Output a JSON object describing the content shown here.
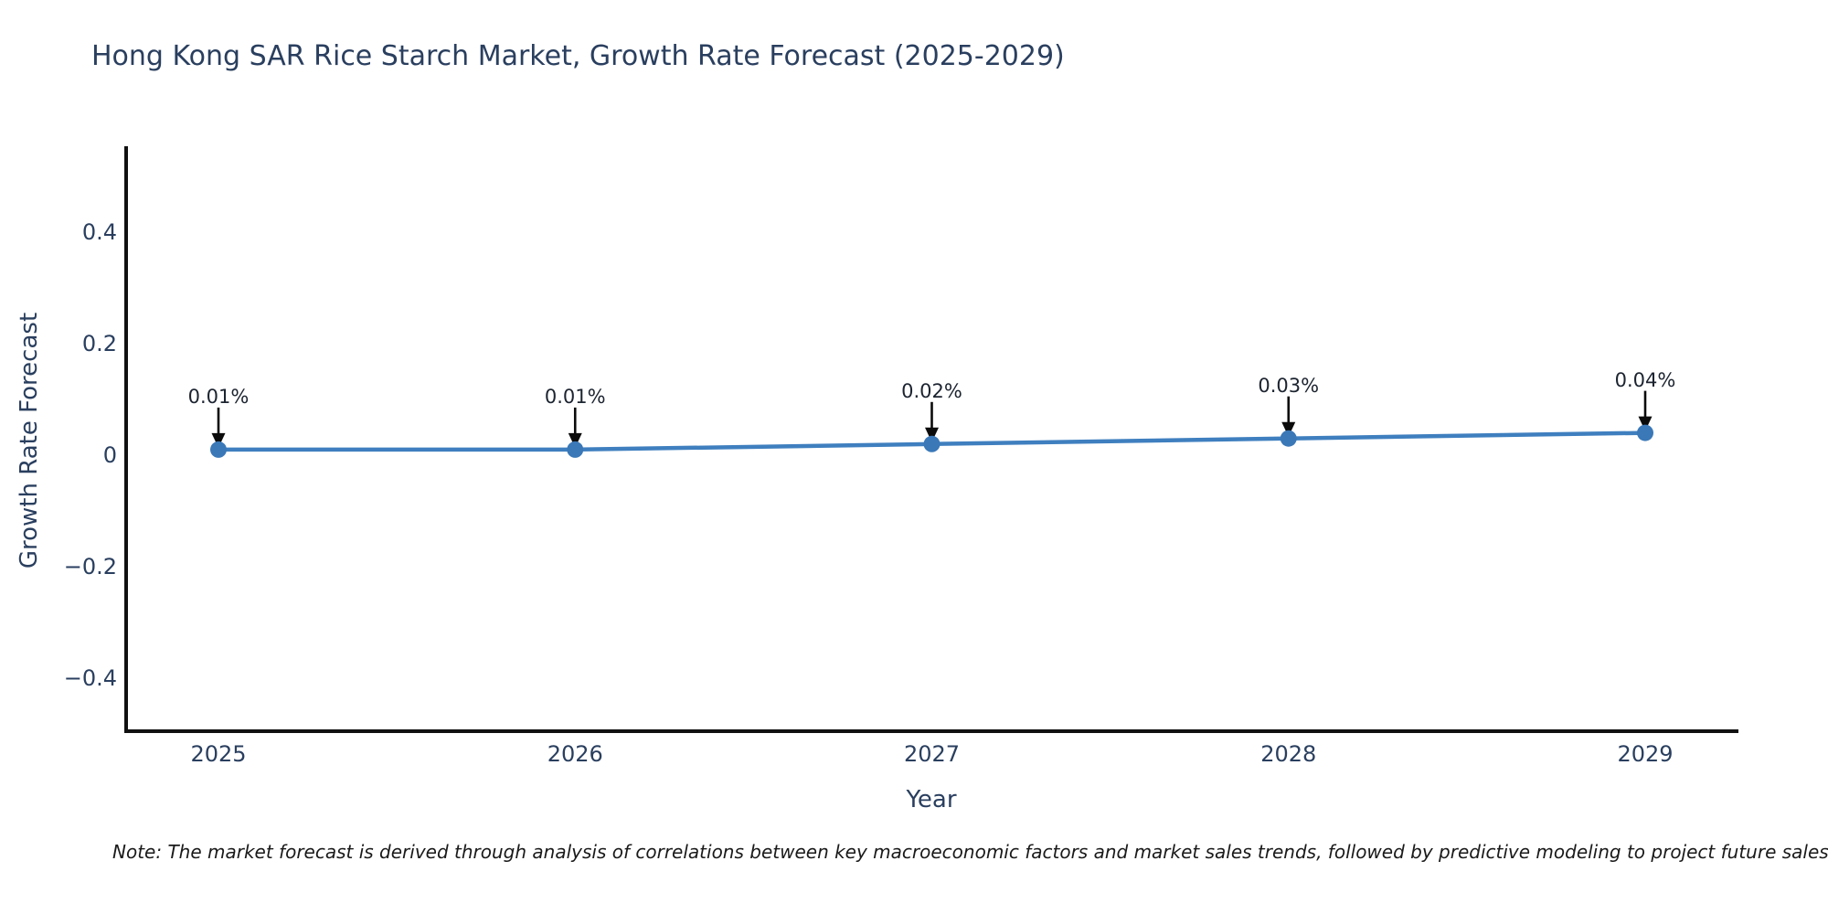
{
  "figure": {
    "note": "Note: The market forecast is derived through analysis of correlations between key macroeconomic factors and market sales trends, followed by predictive modeling to project future sales"
  },
  "chart_data": {
    "type": "line",
    "title": "Hong Kong SAR Rice Starch Market, Growth Rate Forecast (2025-2029)",
    "xlabel": "Year",
    "ylabel": "Growth Rate Forecast",
    "categories": [
      "2025",
      "2026",
      "2027",
      "2028",
      "2029"
    ],
    "series": [
      {
        "name": "Growth Rate Forecast",
        "values": [
          0.01,
          0.01,
          0.02,
          0.03,
          0.04
        ],
        "point_labels": [
          "0.01%",
          "0.01%",
          "0.02%",
          "0.03%",
          "0.04%"
        ]
      }
    ],
    "yticks": {
      "labels": [
        "0.4",
        "0.2",
        "0",
        "−0.2",
        "−0.4"
      ],
      "values": [
        0.4,
        0.2,
        0,
        -0.2,
        -0.4
      ]
    },
    "ylim": [
      -0.495,
      0.554
    ],
    "grid": false,
    "legend": false,
    "annotation_style": "down-arrow-to-marker",
    "colors": {
      "line": "#3f7fbf",
      "marker": "#3a78b8",
      "arrow": "#0b0b0b",
      "axis": "#111111",
      "text": "#2a3f5f",
      "annotation": "#1c2430",
      "note": "#1a1a1a",
      "background": "#ffffff"
    }
  }
}
